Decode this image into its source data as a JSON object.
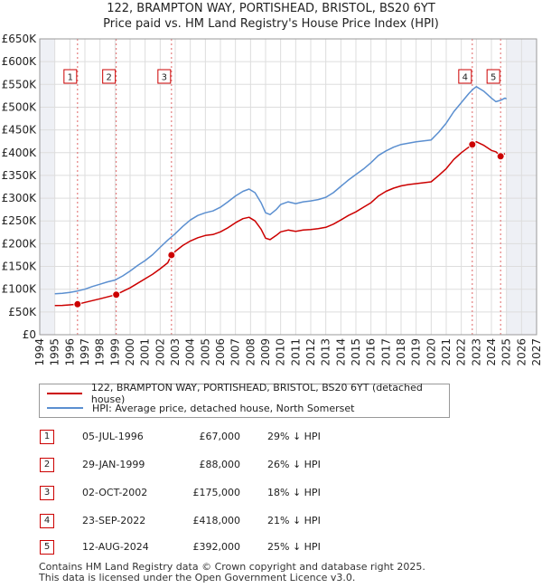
{
  "header": {
    "title_line1": "122, BRAMPTON WAY, PORTISHEAD, BRISTOL, BS20 6YT",
    "title_line2": "Price paid vs. HM Land Registry's House Price Index (HPI)"
  },
  "chart_data": {
    "type": "line",
    "title": "122, BRAMPTON WAY, PORTISHEAD, BRISTOL, BS20 6YT",
    "subtitle": "Price paid vs. HM Land Registry's House Price Index (HPI)",
    "xlim": [
      1994,
      2027
    ],
    "ylim": [
      0,
      650000
    ],
    "x_ticks": [
      1994,
      1995,
      1996,
      1997,
      1998,
      1999,
      2000,
      2001,
      2002,
      2003,
      2004,
      2005,
      2006,
      2007,
      2008,
      2009,
      2010,
      2011,
      2012,
      2013,
      2014,
      2015,
      2016,
      2017,
      2018,
      2019,
      2020,
      2021,
      2022,
      2023,
      2024,
      2025,
      2026,
      2027
    ],
    "y_ticks": [
      0,
      50000,
      100000,
      150000,
      200000,
      250000,
      300000,
      350000,
      400000,
      450000,
      500000,
      550000,
      600000,
      650000
    ],
    "y_tick_labels": [
      "£0",
      "£50K",
      "£100K",
      "£150K",
      "£200K",
      "£250K",
      "£300K",
      "£350K",
      "£400K",
      "£450K",
      "£500K",
      "£550K",
      "£600K",
      "£650K"
    ],
    "data_start_x": 1995.0,
    "data_end_x": 2025.0,
    "grid": true,
    "series": [
      {
        "name": "122, BRAMPTON WAY, PORTISHEAD, BRISTOL, BS20 6YT (detached house)",
        "color": "#cc0000",
        "points": [
          [
            1995.0,
            64000
          ],
          [
            1995.5,
            64500
          ],
          [
            1996.0,
            65500
          ],
          [
            1996.51,
            67000
          ],
          [
            1997.0,
            71000
          ],
          [
            1997.5,
            75000
          ],
          [
            1998.0,
            79000
          ],
          [
            1998.5,
            83000
          ],
          [
            1999.08,
            88000
          ],
          [
            1999.5,
            95000
          ],
          [
            2000.0,
            103000
          ],
          [
            2000.5,
            113000
          ],
          [
            2001.0,
            123000
          ],
          [
            2001.5,
            133000
          ],
          [
            2002.0,
            145000
          ],
          [
            2002.5,
            158000
          ],
          [
            2002.75,
            175000
          ],
          [
            2003.0,
            183000
          ],
          [
            2003.5,
            196000
          ],
          [
            2004.0,
            206000
          ],
          [
            2004.5,
            213000
          ],
          [
            2005.0,
            218000
          ],
          [
            2005.5,
            220000
          ],
          [
            2006.0,
            226000
          ],
          [
            2006.5,
            235000
          ],
          [
            2007.0,
            246000
          ],
          [
            2007.5,
            255000
          ],
          [
            2007.9,
            258000
          ],
          [
            2008.3,
            250000
          ],
          [
            2008.7,
            232000
          ],
          [
            2009.0,
            212000
          ],
          [
            2009.3,
            209000
          ],
          [
            2009.7,
            218000
          ],
          [
            2010.0,
            226000
          ],
          [
            2010.5,
            230000
          ],
          [
            2011.0,
            227000
          ],
          [
            2011.5,
            230000
          ],
          [
            2012.0,
            231000
          ],
          [
            2012.5,
            233000
          ],
          [
            2013.0,
            236000
          ],
          [
            2013.5,
            243000
          ],
          [
            2014.0,
            252000
          ],
          [
            2014.5,
            262000
          ],
          [
            2015.0,
            270000
          ],
          [
            2015.5,
            280000
          ],
          [
            2016.0,
            290000
          ],
          [
            2016.5,
            305000
          ],
          [
            2017.0,
            315000
          ],
          [
            2017.5,
            322000
          ],
          [
            2018.0,
            327000
          ],
          [
            2018.5,
            330000
          ],
          [
            2019.0,
            332000
          ],
          [
            2019.5,
            334000
          ],
          [
            2020.0,
            336000
          ],
          [
            2020.5,
            350000
          ],
          [
            2021.0,
            365000
          ],
          [
            2021.5,
            385000
          ],
          [
            2022.0,
            400000
          ],
          [
            2022.73,
            418000
          ],
          [
            2023.0,
            424000
          ],
          [
            2023.5,
            416000
          ],
          [
            2024.0,
            405000
          ],
          [
            2024.3,
            402000
          ],
          [
            2024.61,
            392000
          ],
          [
            2024.9,
            398000
          ]
        ]
      },
      {
        "name": "HPI: Average price, detached house, North Somerset",
        "color": "#5b8fd0",
        "points": [
          [
            1995.0,
            90000
          ],
          [
            1995.5,
            91000
          ],
          [
            1996.0,
            93000
          ],
          [
            1996.5,
            96000
          ],
          [
            1997.0,
            100000
          ],
          [
            1997.5,
            106000
          ],
          [
            1998.0,
            111000
          ],
          [
            1998.5,
            116000
          ],
          [
            1999.0,
            120000
          ],
          [
            1999.5,
            129000
          ],
          [
            2000.0,
            140000
          ],
          [
            2000.5,
            152000
          ],
          [
            2001.0,
            163000
          ],
          [
            2001.5,
            176000
          ],
          [
            2002.0,
            192000
          ],
          [
            2002.5,
            208000
          ],
          [
            2003.0,
            222000
          ],
          [
            2003.5,
            238000
          ],
          [
            2004.0,
            252000
          ],
          [
            2004.5,
            262000
          ],
          [
            2005.0,
            268000
          ],
          [
            2005.5,
            272000
          ],
          [
            2006.0,
            280000
          ],
          [
            2006.5,
            292000
          ],
          [
            2007.0,
            305000
          ],
          [
            2007.5,
            315000
          ],
          [
            2007.9,
            320000
          ],
          [
            2008.3,
            312000
          ],
          [
            2008.7,
            290000
          ],
          [
            2009.0,
            268000
          ],
          [
            2009.3,
            264000
          ],
          [
            2009.7,
            275000
          ],
          [
            2010.0,
            286000
          ],
          [
            2010.5,
            292000
          ],
          [
            2011.0,
            288000
          ],
          [
            2011.5,
            292000
          ],
          [
            2012.0,
            294000
          ],
          [
            2012.5,
            297000
          ],
          [
            2013.0,
            302000
          ],
          [
            2013.5,
            312000
          ],
          [
            2014.0,
            326000
          ],
          [
            2014.5,
            340000
          ],
          [
            2015.0,
            352000
          ],
          [
            2015.5,
            364000
          ],
          [
            2016.0,
            378000
          ],
          [
            2016.5,
            394000
          ],
          [
            2017.0,
            404000
          ],
          [
            2017.5,
            412000
          ],
          [
            2018.0,
            418000
          ],
          [
            2018.5,
            421000
          ],
          [
            2019.0,
            424000
          ],
          [
            2019.5,
            426000
          ],
          [
            2020.0,
            428000
          ],
          [
            2020.5,
            445000
          ],
          [
            2021.0,
            465000
          ],
          [
            2021.5,
            490000
          ],
          [
            2022.0,
            510000
          ],
          [
            2022.5,
            530000
          ],
          [
            2022.8,
            540000
          ],
          [
            2023.0,
            545000
          ],
          [
            2023.5,
            535000
          ],
          [
            2024.0,
            520000
          ],
          [
            2024.3,
            512000
          ],
          [
            2024.6,
            515000
          ],
          [
            2024.9,
            520000
          ],
          [
            2025.0,
            518000
          ]
        ]
      }
    ],
    "transactions": [
      {
        "num": "1",
        "date": "05-JUL-1996",
        "price": "£67,000",
        "hpi": "29% ↓ HPI",
        "x": 1996.51,
        "y": 67000
      },
      {
        "num": "2",
        "date": "29-JAN-1999",
        "price": "£88,000",
        "hpi": "26% ↓ HPI",
        "x": 1999.08,
        "y": 88000
      },
      {
        "num": "3",
        "date": "02-OCT-2002",
        "price": "£175,000",
        "hpi": "18% ↓ HPI",
        "x": 2002.75,
        "y": 175000
      },
      {
        "num": "4",
        "date": "23-SEP-2022",
        "price": "£418,000",
        "hpi": "21% ↓ HPI",
        "x": 2022.73,
        "y": 418000
      },
      {
        "num": "5",
        "date": "12-AUG-2024",
        "price": "£392,000",
        "hpi": "25% ↓ HPI",
        "x": 2024.61,
        "y": 392000
      }
    ]
  },
  "legend": {
    "property_label": "122, BRAMPTON WAY, PORTISHEAD, BRISTOL, BS20 6YT (detached house)",
    "hpi_label": "HPI: Average price, detached house, North Somerset",
    "property_color": "#cc0000",
    "hpi_color": "#5b8fd0"
  },
  "footer": {
    "line1": "Contains HM Land Registry data © Crown copyright and database right 2025.",
    "line2": "This data is licensed under the Open Government Licence v3.0."
  }
}
